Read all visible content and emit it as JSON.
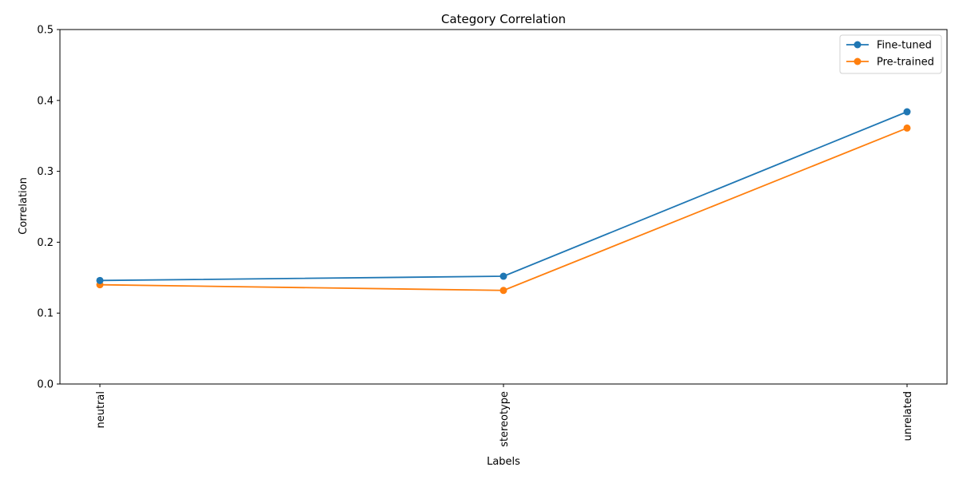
{
  "chart_data": {
    "type": "line",
    "title": "Category Correlation",
    "xlabel": "Labels",
    "ylabel": "Correlation",
    "categories": [
      "neutral",
      "stereotype",
      "unrelated"
    ],
    "ylim": [
      0,
      0.5
    ],
    "yticks": [
      "0.0",
      "0.1",
      "0.2",
      "0.3",
      "0.4",
      "0.5"
    ],
    "legend_position": "top-right",
    "grid": false,
    "series": [
      {
        "name": "Fine-tuned",
        "color": "#1f77b4",
        "values": [
          0.146,
          0.152,
          0.384
        ]
      },
      {
        "name": "Pre-trained",
        "color": "#ff7f0e",
        "values": [
          0.14,
          0.132,
          0.361
        ]
      }
    ]
  }
}
